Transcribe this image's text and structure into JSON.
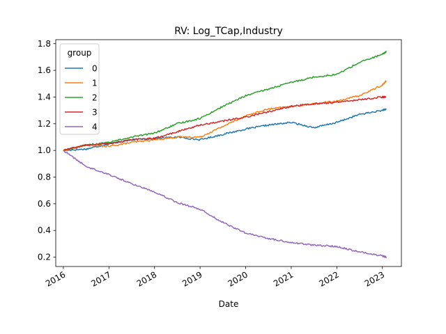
{
  "chart_data": {
    "type": "line",
    "title": "RV: Log_TCap,Industry",
    "xlabel": "Date",
    "ylabel": "",
    "x_ticks": [
      "2016",
      "2017",
      "2018",
      "2019",
      "2020",
      "2021",
      "2022",
      "2023"
    ],
    "y_ticks": [
      "0.2",
      "0.4",
      "0.6",
      "0.8",
      "1.0",
      "1.2",
      "1.4",
      "1.6",
      "1.8"
    ],
    "xlim": [
      "2015-11",
      "2023-06"
    ],
    "ylim": [
      0.13,
      1.83
    ],
    "grid": false,
    "legend": {
      "title": "group",
      "position": "top-left"
    },
    "x": [
      "2016-01",
      "2016-07",
      "2017-01",
      "2017-07",
      "2018-01",
      "2018-07",
      "2019-01",
      "2019-07",
      "2020-01",
      "2020-07",
      "2021-01",
      "2021-07",
      "2022-01",
      "2022-07",
      "2023-01",
      "2023-02"
    ],
    "series": [
      {
        "name": "0",
        "color": "#1f77b4",
        "values": [
          1.0,
          1.01,
          1.05,
          1.08,
          1.09,
          1.1,
          1.08,
          1.12,
          1.16,
          1.19,
          1.21,
          1.17,
          1.21,
          1.27,
          1.3,
          1.31
        ]
      },
      {
        "name": "1",
        "color": "#ff7f0e",
        "values": [
          1.0,
          1.04,
          1.03,
          1.06,
          1.08,
          1.1,
          1.1,
          1.18,
          1.26,
          1.31,
          1.33,
          1.35,
          1.37,
          1.41,
          1.49,
          1.52
        ]
      },
      {
        "name": "2",
        "color": "#2ca02c",
        "values": [
          1.0,
          1.04,
          1.06,
          1.1,
          1.13,
          1.2,
          1.24,
          1.33,
          1.41,
          1.46,
          1.51,
          1.55,
          1.57,
          1.66,
          1.72,
          1.74
        ]
      },
      {
        "name": "3",
        "color": "#d62728",
        "values": [
          1.0,
          1.04,
          1.05,
          1.08,
          1.09,
          1.14,
          1.19,
          1.22,
          1.25,
          1.29,
          1.33,
          1.35,
          1.36,
          1.38,
          1.4,
          1.4
        ]
      },
      {
        "name": "4",
        "color": "#9467bd",
        "values": [
          1.0,
          0.88,
          0.82,
          0.75,
          0.69,
          0.61,
          0.56,
          0.46,
          0.38,
          0.34,
          0.31,
          0.29,
          0.28,
          0.24,
          0.21,
          0.2
        ]
      }
    ]
  }
}
